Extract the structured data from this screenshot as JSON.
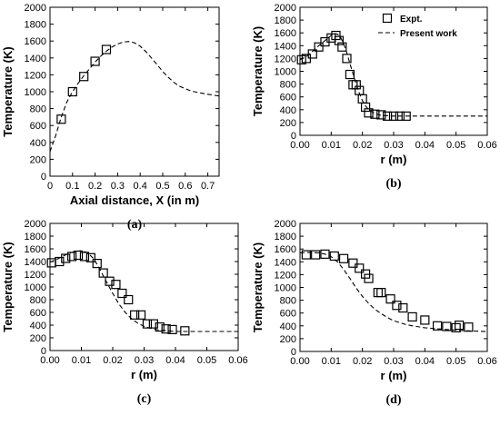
{
  "chart_data": [
    {
      "type": "scatter",
      "panel_label": "(a)",
      "xlabel": "Axial distance, X (in m)",
      "ylabel": "Temperature (K)",
      "xlim": [
        0,
        0.75
      ],
      "ylim": [
        0,
        2000
      ],
      "xticks": [
        0,
        0.1,
        0.2,
        0.3,
        0.4,
        0.5,
        0.6,
        0.7
      ],
      "xtick_labels": [
        "0",
        "0.1",
        "0.2",
        "0.3",
        "0.4",
        "0.5",
        "0.6",
        "0.7"
      ],
      "yticks": [
        0,
        200,
        400,
        600,
        800,
        1000,
        1200,
        1400,
        1600,
        1800,
        2000
      ],
      "ytick_labels": [
        "0",
        "200",
        "400",
        "600",
        "800",
        "1000",
        "1200",
        "1400",
        "1600",
        "1800",
        "2000"
      ],
      "series": [
        {
          "marker": "open-square",
          "x": [
            0.05,
            0.1,
            0.15,
            0.2,
            0.25
          ],
          "y": [
            675,
            1000,
            1180,
            1360,
            1500
          ]
        },
        {
          "style": "dashed-line",
          "x": [
            0.0,
            0.025,
            0.05,
            0.075,
            0.1,
            0.125,
            0.15,
            0.175,
            0.2,
            0.225,
            0.25,
            0.275,
            0.3,
            0.325,
            0.35,
            0.375,
            0.4,
            0.425,
            0.45,
            0.475,
            0.5,
            0.525,
            0.55,
            0.575,
            0.6,
            0.625,
            0.65,
            0.675,
            0.7,
            0.725,
            0.75
          ],
          "y": [
            290,
            480,
            700,
            880,
            1000,
            1100,
            1190,
            1270,
            1350,
            1420,
            1480,
            1530,
            1565,
            1588,
            1595,
            1580,
            1540,
            1475,
            1400,
            1320,
            1240,
            1170,
            1110,
            1065,
            1035,
            1010,
            995,
            982,
            970,
            960,
            950
          ]
        }
      ]
    },
    {
      "type": "scatter",
      "panel_label": "(b)",
      "xlabel": "r (m)",
      "ylabel": "Temperature (K)",
      "xlim": [
        0,
        0.06
      ],
      "ylim": [
        0,
        2000
      ],
      "xticks": [
        0,
        0.01,
        0.02,
        0.03,
        0.04,
        0.05,
        0.06
      ],
      "xtick_labels": [
        "0.00",
        "0.01",
        "0.02",
        "0.03",
        "0.04",
        "0.05",
        "0.06"
      ],
      "yticks": [
        0,
        200,
        400,
        600,
        800,
        1000,
        1200,
        1400,
        1600,
        1800,
        2000
      ],
      "ytick_labels": [
        "0",
        "200",
        "400",
        "600",
        "800",
        "1000",
        "1200",
        "1400",
        "1600",
        "1800",
        "2000"
      ],
      "legend": {
        "placement": "top-right",
        "entries": [
          {
            "label": "Expt.",
            "marker": "open-square"
          },
          {
            "label": "Present work",
            "style": "dashed-line"
          }
        ]
      },
      "series": [
        {
          "name": "Expt.",
          "marker": "open-square",
          "x": [
            0.0005,
            0.002,
            0.004,
            0.006,
            0.008,
            0.01,
            0.0115,
            0.0125,
            0.0135,
            0.015,
            0.016,
            0.017,
            0.018,
            0.019,
            0.02,
            0.021,
            0.022,
            0.024,
            0.026,
            0.028,
            0.03,
            0.032,
            0.034
          ],
          "y": [
            1180,
            1200,
            1270,
            1380,
            1460,
            1520,
            1560,
            1480,
            1380,
            1200,
            950,
            790,
            790,
            700,
            570,
            440,
            350,
            330,
            320,
            300,
            300,
            300,
            300
          ]
        },
        {
          "name": "Present work",
          "style": "dashed-line",
          "x": [
            0.0,
            0.002,
            0.004,
            0.006,
            0.008,
            0.01,
            0.011,
            0.012,
            0.013,
            0.014,
            0.015,
            0.016,
            0.017,
            0.018,
            0.019,
            0.02,
            0.021,
            0.022,
            0.024,
            0.026,
            0.03,
            0.035,
            0.04,
            0.05,
            0.06
          ],
          "y": [
            1180,
            1230,
            1310,
            1400,
            1480,
            1560,
            1590,
            1580,
            1530,
            1430,
            1290,
            1120,
            960,
            800,
            660,
            540,
            460,
            400,
            340,
            310,
            300,
            300,
            300,
            300,
            300
          ]
        }
      ]
    },
    {
      "type": "scatter",
      "panel_label": "(c)",
      "xlabel": "r (m)",
      "ylabel": "Temperature (K)",
      "xlim": [
        0,
        0.06
      ],
      "ylim": [
        0,
        2000
      ],
      "xticks": [
        0,
        0.01,
        0.02,
        0.03,
        0.04,
        0.05,
        0.06
      ],
      "xtick_labels": [
        "0.00",
        "0.01",
        "0.02",
        "0.03",
        "0.04",
        "0.05",
        "0.06"
      ],
      "yticks": [
        0,
        200,
        400,
        600,
        800,
        1000,
        1200,
        1400,
        1600,
        1800,
        2000
      ],
      "ytick_labels": [
        "0",
        "200",
        "400",
        "600",
        "800",
        "1000",
        "1200",
        "1400",
        "1600",
        "1800",
        "2000"
      ],
      "series": [
        {
          "marker": "open-square",
          "x": [
            0.0005,
            0.003,
            0.005,
            0.007,
            0.009,
            0.011,
            0.013,
            0.015,
            0.017,
            0.019,
            0.021,
            0.023,
            0.025,
            0.027,
            0.029,
            0.031,
            0.033,
            0.035,
            0.037,
            0.039,
            0.043
          ],
          "y": [
            1380,
            1400,
            1450,
            1480,
            1500,
            1480,
            1460,
            1370,
            1220,
            1090,
            1040,
            900,
            800,
            560,
            560,
            420,
            420,
            370,
            340,
            330,
            310
          ]
        },
        {
          "style": "dashed-line",
          "x": [
            0.0,
            0.002,
            0.004,
            0.006,
            0.008,
            0.01,
            0.012,
            0.014,
            0.016,
            0.018,
            0.02,
            0.022,
            0.024,
            0.026,
            0.028,
            0.03,
            0.032,
            0.035,
            0.04,
            0.05,
            0.06
          ],
          "y": [
            1390,
            1430,
            1480,
            1530,
            1560,
            1570,
            1540,
            1440,
            1270,
            1080,
            900,
            730,
            600,
            500,
            430,
            380,
            350,
            320,
            300,
            300,
            300
          ]
        }
      ]
    },
    {
      "type": "scatter",
      "panel_label": "(d)",
      "xlabel": "r (m)",
      "ylabel": "Temperature (K)",
      "xlim": [
        0,
        0.06
      ],
      "ylim": [
        0,
        2000
      ],
      "xticks": [
        0,
        0.01,
        0.02,
        0.03,
        0.04,
        0.05,
        0.06
      ],
      "xtick_labels": [
        "0.00",
        "0.01",
        "0.02",
        "0.03",
        "0.04",
        "0.05",
        "0.06"
      ],
      "yticks": [
        0,
        200,
        400,
        600,
        800,
        1000,
        1200,
        1400,
        1600,
        1800,
        2000
      ],
      "ytick_labels": [
        "0",
        "200",
        "400",
        "600",
        "800",
        "1000",
        "1200",
        "1400",
        "1600",
        "1800",
        "2000"
      ],
      "series": [
        {
          "marker": "open-square",
          "x": [
            0.002,
            0.005,
            0.008,
            0.011,
            0.014,
            0.017,
            0.019,
            0.021,
            0.022,
            0.025,
            0.026,
            0.029,
            0.031,
            0.033,
            0.036,
            0.04,
            0.044,
            0.047,
            0.05,
            0.051,
            0.054
          ],
          "y": [
            1510,
            1510,
            1520,
            1490,
            1450,
            1380,
            1300,
            1210,
            1140,
            920,
            920,
            820,
            720,
            680,
            540,
            490,
            400,
            390,
            370,
            410,
            380
          ]
        },
        {
          "style": "dashed-line",
          "x": [
            0.0,
            0.002,
            0.004,
            0.006,
            0.008,
            0.01,
            0.012,
            0.014,
            0.016,
            0.018,
            0.02,
            0.022,
            0.024,
            0.026,
            0.028,
            0.03,
            0.032,
            0.034,
            0.036,
            0.04,
            0.045,
            0.05,
            0.055,
            0.06
          ],
          "y": [
            1540,
            1545,
            1545,
            1540,
            1520,
            1480,
            1400,
            1280,
            1140,
            990,
            860,
            750,
            660,
            590,
            530,
            480,
            450,
            420,
            400,
            370,
            350,
            330,
            320,
            310
          ]
        }
      ]
    }
  ]
}
